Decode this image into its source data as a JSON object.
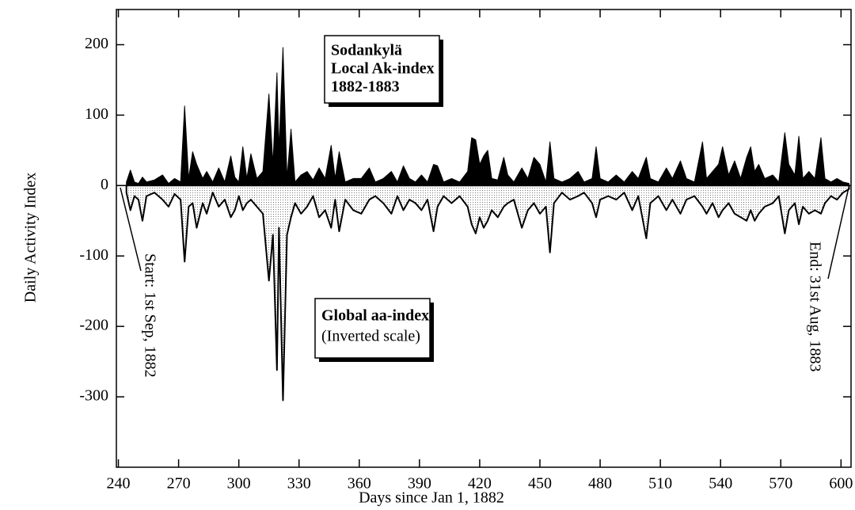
{
  "chart_data": {
    "type": "area",
    "x_label": "Days since Jan 1, 1882",
    "y_label": "Daily Activity Index",
    "annotations": {
      "ak_box": [
        "Sodankylä",
        "Local Ak-index",
        "1882-1883"
      ],
      "aa_box": [
        "Global aa-index",
        "(Inverted scale)"
      ],
      "start": "Start: 1st Sep, 1882",
      "end": "End: 31st Aug, 1883"
    },
    "xlim": [
      239,
      605
    ],
    "ylim": [
      -400,
      250
    ],
    "xticks": [
      240,
      270,
      300,
      330,
      360,
      390,
      420,
      450,
      480,
      510,
      540,
      570,
      600
    ],
    "yticks": [
      200,
      100,
      0,
      -100,
      -200,
      -300
    ],
    "x": [
      244,
      246,
      248,
      250,
      252,
      254,
      258,
      262,
      265,
      268,
      271,
      273,
      275,
      277,
      279,
      282,
      284,
      287,
      290,
      293,
      296,
      298,
      300,
      302,
      304,
      306,
      309,
      312,
      315,
      317,
      319,
      320,
      322,
      324,
      326,
      328,
      331,
      334,
      337,
      340,
      343,
      346,
      348,
      350,
      353,
      357,
      361,
      365,
      368,
      372,
      376,
      379,
      382,
      385,
      388,
      391,
      394,
      397,
      399,
      402,
      406,
      410,
      414,
      416,
      418,
      420,
      422,
      424,
      426,
      429,
      432,
      434,
      437,
      441,
      444,
      447,
      450,
      453,
      455,
      457,
      461,
      465,
      469,
      472,
      476,
      478,
      480,
      484,
      488,
      492,
      496,
      499,
      503,
      505,
      509,
      513,
      516,
      520,
      523,
      527,
      531,
      533,
      536,
      539,
      541,
      544,
      547,
      550,
      553,
      555,
      557,
      559,
      562,
      566,
      569,
      572,
      574,
      577,
      579,
      581,
      584,
      587,
      590,
      592,
      595,
      598,
      601,
      604
    ],
    "series": [
      {
        "color": "#000000",
        "fill": "solid",
        "values": [
          5,
          22,
          5,
          3,
          12,
          5,
          8,
          15,
          3,
          10,
          5,
          113,
          10,
          48,
          30,
          10,
          20,
          5,
          25,
          5,
          42,
          12,
          5,
          55,
          10,
          45,
          10,
          20,
          130,
          30,
          160,
          50,
          196,
          10,
          80,
          5,
          15,
          20,
          8,
          25,
          10,
          57,
          10,
          48,
          5,
          10,
          10,
          25,
          5,
          10,
          20,
          5,
          28,
          10,
          5,
          15,
          5,
          30,
          28,
          5,
          10,
          5,
          20,
          68,
          65,
          30,
          42,
          50,
          10,
          8,
          40,
          15,
          5,
          25,
          10,
          40,
          30,
          5,
          62,
          10,
          5,
          10,
          20,
          5,
          10,
          55,
          10,
          5,
          15,
          5,
          20,
          10,
          40,
          10,
          5,
          25,
          10,
          35,
          10,
          5,
          62,
          10,
          20,
          30,
          55,
          15,
          35,
          10,
          40,
          55,
          20,
          30,
          10,
          15,
          5,
          75,
          30,
          15,
          70,
          10,
          20,
          10,
          68,
          10,
          5,
          10,
          5,
          3
        ]
      },
      {
        "color": "#000000",
        "fill": "stipple",
        "values": [
          -10,
          -35,
          -15,
          -20,
          -50,
          -15,
          -10,
          -20,
          -30,
          -12,
          -20,
          -108,
          -30,
          -25,
          -60,
          -25,
          -40,
          -10,
          -30,
          -20,
          -45,
          -35,
          -15,
          -35,
          -25,
          -20,
          -30,
          -40,
          -135,
          -70,
          -262,
          -60,
          -305,
          -70,
          -45,
          -25,
          -40,
          -30,
          -15,
          -45,
          -35,
          -60,
          -20,
          -65,
          -20,
          -35,
          -40,
          -20,
          -15,
          -25,
          -40,
          -15,
          -35,
          -20,
          -25,
          -35,
          -20,
          -65,
          -30,
          -15,
          -25,
          -15,
          -30,
          -55,
          -68,
          -45,
          -60,
          -50,
          -35,
          -45,
          -30,
          -25,
          -20,
          -60,
          -35,
          -25,
          -40,
          -30,
          -95,
          -25,
          -10,
          -20,
          -15,
          -10,
          -25,
          -45,
          -20,
          -15,
          -20,
          -10,
          -35,
          -15,
          -75,
          -25,
          -15,
          -35,
          -20,
          -40,
          -20,
          -15,
          -30,
          -40,
          -25,
          -45,
          -35,
          -25,
          -40,
          -45,
          -50,
          -35,
          -50,
          -40,
          -30,
          -25,
          -15,
          -68,
          -35,
          -25,
          -55,
          -30,
          -40,
          -35,
          -40,
          -25,
          -15,
          -20,
          -10,
          -5
        ]
      }
    ]
  }
}
